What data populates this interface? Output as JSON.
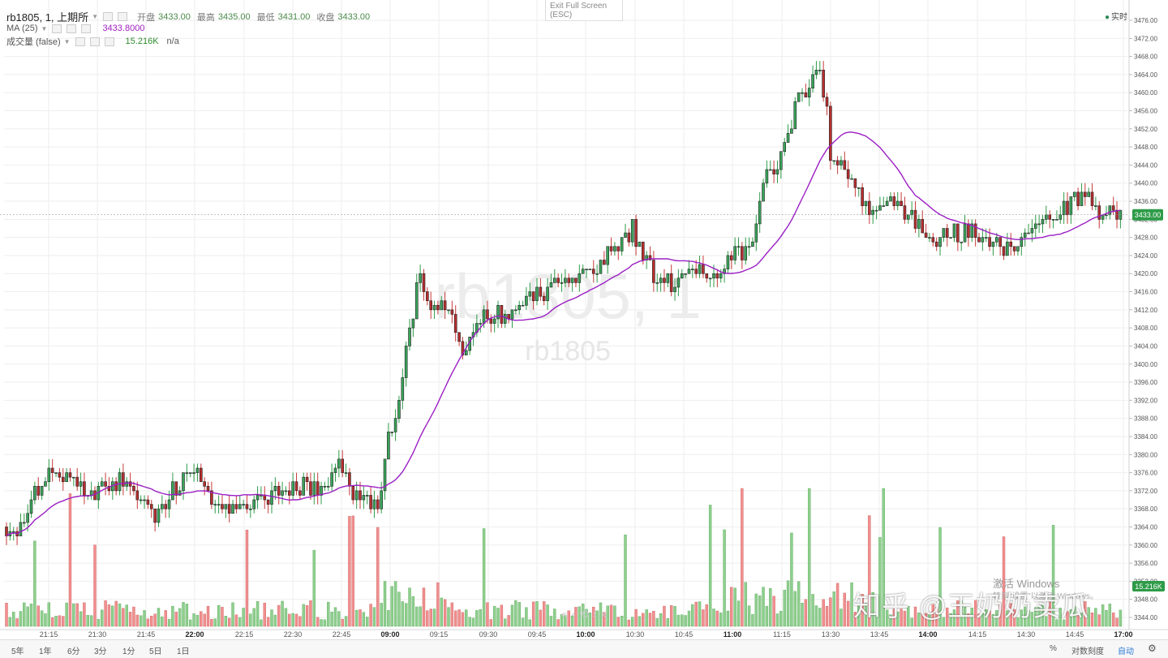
{
  "legend": {
    "symbol": "rb1805, 1, 上期所",
    "open_label": "开盘",
    "open": "3433.00",
    "high_label": "最高",
    "high": "3435.00",
    "low_label": "最低",
    "low": "3431.00",
    "close_label": "收盘",
    "close": "3433.00",
    "ma_label": "MA (25)",
    "ma_value": "3433.8000",
    "vol_label": "成交量 (false)",
    "vol_value": "15.216K",
    "vol_na": "n/a"
  },
  "fullscreen": {
    "title": "Exit Full Screen",
    "hint": "(ESC)"
  },
  "realtime_label": "实时",
  "watermark": {
    "big": "rb1805, 1",
    "small": "rb1805",
    "brand": "知乎 @王奶奶卖瓜"
  },
  "windows_notice": {
    "line1": "激活 Windows",
    "line2": "转到“设置”以激活 Windows。"
  },
  "price_badge": "3433.00",
  "volume_badge": "15.216K",
  "bottom": {
    "periods": [
      "5年",
      "1年",
      "6分",
      "3分",
      "1分",
      "5日",
      "1日"
    ],
    "percent": "%",
    "log": "对数刻度",
    "auto": "自动",
    "settings_icon": "gear-icon"
  },
  "colors": {
    "up": "#2e9b48",
    "down": "#c73a3a",
    "ma": "#9b1fc4",
    "vol_up": "#8fcf8f",
    "vol_down": "#f08f8f"
  },
  "chart_data": {
    "type": "candlestick",
    "symbol": "rb1805",
    "interval": "1 minute",
    "time_axis": [
      "21:15",
      "21:30",
      "21:45",
      "22:00",
      "22:15",
      "22:30",
      "22:45",
      "09:00",
      "09:15",
      "09:30",
      "09:45",
      "10:00",
      "10:30",
      "10:45",
      "11:00",
      "11:15",
      "13:30",
      "13:45",
      "14:00",
      "14:15",
      "14:30",
      "14:45",
      "17:00"
    ],
    "y_ticks": [
      3344,
      3348,
      3352,
      3356,
      3360,
      3364,
      3368,
      3372,
      3376,
      3380,
      3384,
      3388,
      3392,
      3396,
      3400,
      3404,
      3408,
      3412,
      3416,
      3420,
      3424,
      3428,
      3432,
      3436,
      3440,
      3444,
      3448,
      3452,
      3456,
      3460,
      3464,
      3468,
      3472,
      3476
    ],
    "ylim": [
      3342,
      3478
    ],
    "last_price": 3433,
    "ma_period": 25,
    "price_anchors": [
      {
        "t": "21:05",
        "p": 3364
      },
      {
        "t": "21:08",
        "p": 3370
      },
      {
        "t": "21:15",
        "p": 3377
      },
      {
        "t": "21:20",
        "p": 3374
      },
      {
        "t": "21:30",
        "p": 3372
      },
      {
        "t": "21:37",
        "p": 3375
      },
      {
        "t": "21:42",
        "p": 3370
      },
      {
        "t": "21:48",
        "p": 3366
      },
      {
        "t": "21:55",
        "p": 3374
      },
      {
        "t": "22:00",
        "p": 3377
      },
      {
        "t": "22:05",
        "p": 3370
      },
      {
        "t": "22:15",
        "p": 3369
      },
      {
        "t": "22:25",
        "p": 3371
      },
      {
        "t": "22:35",
        "p": 3373
      },
      {
        "t": "22:42",
        "p": 3372
      },
      {
        "t": "22:45",
        "p": 3380
      },
      {
        "t": "22:50",
        "p": 3371
      },
      {
        "t": "22:58",
        "p": 3368
      },
      {
        "t": "09:00",
        "p": 3380
      },
      {
        "t": "09:05",
        "p": 3392
      },
      {
        "t": "09:10",
        "p": 3408
      },
      {
        "t": "09:13",
        "p": 3420
      },
      {
        "t": "09:15",
        "p": 3414
      },
      {
        "t": "09:25",
        "p": 3412
      },
      {
        "t": "09:30",
        "p": 3402
      },
      {
        "t": "09:36",
        "p": 3410
      },
      {
        "t": "09:45",
        "p": 3411
      },
      {
        "t": "09:55",
        "p": 3414
      },
      {
        "t": "10:00",
        "p": 3416
      },
      {
        "t": "10:15",
        "p": 3420
      },
      {
        "t": "10:25",
        "p": 3426
      },
      {
        "t": "10:30",
        "p": 3430
      },
      {
        "t": "10:36",
        "p": 3420
      },
      {
        "t": "10:42",
        "p": 3418
      },
      {
        "t": "10:50",
        "p": 3420
      },
      {
        "t": "10:58",
        "p": 3421
      },
      {
        "t": "11:00",
        "p": 3424
      },
      {
        "t": "11:06",
        "p": 3425
      },
      {
        "t": "11:10",
        "p": 3440
      },
      {
        "t": "11:15",
        "p": 3444
      },
      {
        "t": "11:20",
        "p": 3456
      },
      {
        "t": "11:27",
        "p": 3466
      },
      {
        "t": "11:30",
        "p": 3456
      },
      {
        "t": "13:30",
        "p": 3446
      },
      {
        "t": "13:38",
        "p": 3440
      },
      {
        "t": "13:42",
        "p": 3434
      },
      {
        "t": "13:50",
        "p": 3436
      },
      {
        "t": "13:55",
        "p": 3432
      },
      {
        "t": "14:00",
        "p": 3428
      },
      {
        "t": "14:06",
        "p": 3428
      },
      {
        "t": "14:13",
        "p": 3430
      },
      {
        "t": "14:20",
        "p": 3426
      },
      {
        "t": "14:26",
        "p": 3426
      },
      {
        "t": "14:32",
        "p": 3430
      },
      {
        "t": "14:40",
        "p": 3434
      },
      {
        "t": "14:47",
        "p": 3438
      },
      {
        "t": "14:52",
        "p": 3434
      },
      {
        "t": "14:58",
        "p": 3433
      }
    ],
    "volume_note": "bars up to ~10 scale units; green = up, red = down"
  }
}
